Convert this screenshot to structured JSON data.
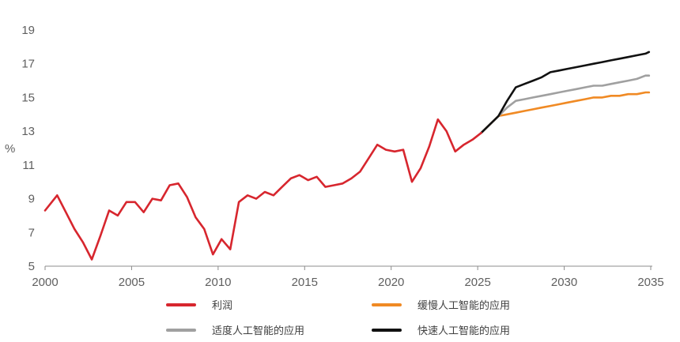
{
  "chart_data": {
    "type": "line",
    "ylabel": "%",
    "xlim": [
      2000,
      2035
    ],
    "ylim": [
      5,
      19
    ],
    "x_ticks": [
      "2000",
      "2005",
      "2010",
      "2015",
      "2020",
      "2025",
      "2030",
      "2035"
    ],
    "y_ticks": [
      "5",
      "7",
      "9",
      "11",
      "13",
      "15",
      "17",
      "19"
    ],
    "grid": false,
    "legend": "bottom",
    "series": [
      {
        "name": "利润",
        "color": "#d7262e",
        "points": [
          [
            2000.0,
            8.3
          ],
          [
            2000.7,
            9.2
          ],
          [
            2001.2,
            8.2
          ],
          [
            2001.7,
            7.2
          ],
          [
            2002.2,
            6.4
          ],
          [
            2002.7,
            5.4
          ],
          [
            2003.2,
            6.8
          ],
          [
            2003.7,
            8.3
          ],
          [
            2004.2,
            8.0
          ],
          [
            2004.7,
            8.8
          ],
          [
            2005.2,
            8.8
          ],
          [
            2005.7,
            8.2
          ],
          [
            2006.2,
            9.0
          ],
          [
            2006.7,
            8.9
          ],
          [
            2007.2,
            9.8
          ],
          [
            2007.7,
            9.9
          ],
          [
            2008.2,
            9.1
          ],
          [
            2008.7,
            7.9
          ],
          [
            2009.2,
            7.2
          ],
          [
            2009.7,
            5.7
          ],
          [
            2010.2,
            6.6
          ],
          [
            2010.7,
            6.0
          ],
          [
            2011.2,
            8.8
          ],
          [
            2011.7,
            9.2
          ],
          [
            2012.2,
            9.0
          ],
          [
            2012.7,
            9.4
          ],
          [
            2013.2,
            9.2
          ],
          [
            2013.7,
            9.7
          ],
          [
            2014.2,
            10.2
          ],
          [
            2014.7,
            10.4
          ],
          [
            2015.2,
            10.1
          ],
          [
            2015.7,
            10.3
          ],
          [
            2016.2,
            9.7
          ],
          [
            2016.7,
            9.8
          ],
          [
            2017.2,
            9.9
          ],
          [
            2017.7,
            10.2
          ],
          [
            2018.2,
            10.6
          ],
          [
            2018.7,
            11.4
          ],
          [
            2019.2,
            12.2
          ],
          [
            2019.7,
            11.9
          ],
          [
            2020.2,
            11.8
          ],
          [
            2020.7,
            11.9
          ],
          [
            2021.2,
            10.0
          ],
          [
            2021.7,
            10.8
          ],
          [
            2022.2,
            12.1
          ],
          [
            2022.7,
            13.7
          ],
          [
            2023.2,
            13.0
          ],
          [
            2023.7,
            11.8
          ],
          [
            2024.2,
            12.2
          ],
          [
            2024.7,
            12.5
          ],
          [
            2025.2,
            12.9
          ]
        ]
      },
      {
        "name": "缓慢人工智能的应用",
        "color": "#f08a24",
        "points": [
          [
            2025.2,
            12.9
          ],
          [
            2025.7,
            13.4
          ],
          [
            2026.2,
            13.9
          ],
          [
            2026.7,
            14.0
          ],
          [
            2027.2,
            14.1
          ],
          [
            2027.7,
            14.2
          ],
          [
            2028.2,
            14.3
          ],
          [
            2028.7,
            14.4
          ],
          [
            2029.2,
            14.5
          ],
          [
            2029.7,
            14.6
          ],
          [
            2030.2,
            14.7
          ],
          [
            2030.7,
            14.8
          ],
          [
            2031.2,
            14.9
          ],
          [
            2031.7,
            15.0
          ],
          [
            2032.2,
            15.0
          ],
          [
            2032.7,
            15.1
          ],
          [
            2033.2,
            15.1
          ],
          [
            2033.7,
            15.2
          ],
          [
            2034.2,
            15.2
          ],
          [
            2034.7,
            15.3
          ],
          [
            2034.9,
            15.3
          ]
        ]
      },
      {
        "name": "适度人工智能的应用",
        "color": "#a0a0a0",
        "points": [
          [
            2025.2,
            12.9
          ],
          [
            2025.7,
            13.4
          ],
          [
            2026.2,
            13.9
          ],
          [
            2026.7,
            14.4
          ],
          [
            2027.2,
            14.8
          ],
          [
            2027.7,
            14.9
          ],
          [
            2028.2,
            15.0
          ],
          [
            2028.7,
            15.1
          ],
          [
            2029.2,
            15.2
          ],
          [
            2029.7,
            15.3
          ],
          [
            2030.2,
            15.4
          ],
          [
            2030.7,
            15.5
          ],
          [
            2031.2,
            15.6
          ],
          [
            2031.7,
            15.7
          ],
          [
            2032.2,
            15.7
          ],
          [
            2032.7,
            15.8
          ],
          [
            2033.2,
            15.9
          ],
          [
            2033.7,
            16.0
          ],
          [
            2034.2,
            16.1
          ],
          [
            2034.7,
            16.3
          ],
          [
            2034.9,
            16.3
          ]
        ]
      },
      {
        "name": "快速人工智能的应用",
        "color": "#111111",
        "points": [
          [
            2025.2,
            12.9
          ],
          [
            2025.7,
            13.4
          ],
          [
            2026.2,
            13.9
          ],
          [
            2026.7,
            14.8
          ],
          [
            2027.2,
            15.6
          ],
          [
            2027.7,
            15.8
          ],
          [
            2028.2,
            16.0
          ],
          [
            2028.7,
            16.2
          ],
          [
            2029.2,
            16.5
          ],
          [
            2029.7,
            16.6
          ],
          [
            2030.2,
            16.7
          ],
          [
            2030.7,
            16.8
          ],
          [
            2031.2,
            16.9
          ],
          [
            2031.7,
            17.0
          ],
          [
            2032.2,
            17.1
          ],
          [
            2032.7,
            17.2
          ],
          [
            2033.2,
            17.3
          ],
          [
            2033.7,
            17.4
          ],
          [
            2034.2,
            17.5
          ],
          [
            2034.7,
            17.6
          ],
          [
            2034.9,
            17.7
          ]
        ]
      }
    ]
  }
}
